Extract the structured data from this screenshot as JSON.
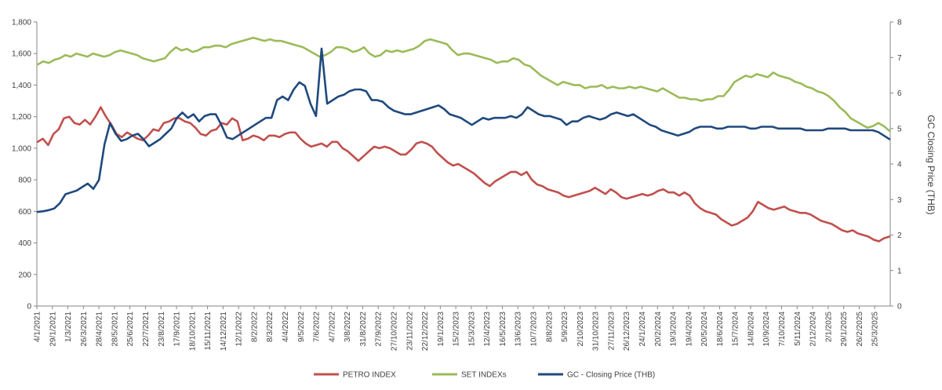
{
  "chart_data": {
    "type": "line",
    "title": "",
    "xlabel": "",
    "ylabel": "",
    "y2label": "GC Closing Price (THB)",
    "ylim": [
      0,
      1800
    ],
    "y_ticks": [
      "0",
      "200",
      "400",
      "600",
      "800",
      "1,000",
      "1,200",
      "1,400",
      "1,600",
      "1,800"
    ],
    "y2lim": [
      0,
      8
    ],
    "y2_ticks": [
      "0",
      "1",
      "2",
      "3",
      "4",
      "5",
      "6",
      "7",
      "8"
    ],
    "x_ticks": [
      "4/1/2021",
      "29/1/2021",
      "1/3/2021",
      "26/3/2021",
      "28/4/2021",
      "28/5/2021",
      "25/6/2021",
      "22/7/2021",
      "23/8/2021",
      "17/9/2021",
      "18/10/2021",
      "15/11/2021",
      "14/12/2021",
      "12/1/2022",
      "8/2/2022",
      "8/3/2022",
      "4/4/2022",
      "9/5/2022",
      "7/6/2022",
      "4/7/2022",
      "3/8/2022",
      "31/8/2022",
      "27/9/2022",
      "27/10/2022",
      "23/11/2022",
      "22/12/2022",
      "19/1/2023",
      "15/2/2023",
      "15/3/2023",
      "12/4/2023",
      "16/5/2023",
      "13/6/2023",
      "10/7/2023",
      "8/8/2023",
      "5/9/2023",
      "2/10/2023",
      "31/10/2023",
      "27/11/2023",
      "26/12/2023",
      "24/1/2024",
      "20/2/2024",
      "19/3/2024",
      "19/4/2024",
      "20/5/2024",
      "18/6/2024",
      "15/7/2024",
      "14/8/2024",
      "10/9/2024",
      "7/10/2024",
      "5/11/2024",
      "2/12/2024",
      "2/1/2025",
      "29/1/2025",
      "26/2/2025",
      "25/3/2025"
    ],
    "grid": false,
    "legend_position": "bottom",
    "series": [
      {
        "name": "PETRO INDEX",
        "axis": "left",
        "color": "#c0504d",
        "values": [
          1040,
          1060,
          1020,
          1090,
          1120,
          1190,
          1200,
          1160,
          1150,
          1180,
          1150,
          1200,
          1260,
          1200,
          1150,
          1090,
          1070,
          1100,
          1080,
          1060,
          1050,
          1080,
          1120,
          1110,
          1160,
          1170,
          1190,
          1190,
          1170,
          1160,
          1130,
          1090,
          1080,
          1110,
          1120,
          1160,
          1150,
          1190,
          1170,
          1050,
          1060,
          1080,
          1070,
          1050,
          1080,
          1080,
          1070,
          1090,
          1100,
          1100,
          1060,
          1030,
          1010,
          1020,
          1030,
          1010,
          1040,
          1040,
          1000,
          980,
          950,
          920,
          950,
          980,
          1010,
          1000,
          1010,
          1000,
          980,
          960,
          960,
          990,
          1030,
          1040,
          1030,
          1010,
          970,
          940,
          910,
          890,
          900,
          880,
          860,
          840,
          810,
          780,
          760,
          790,
          810,
          830,
          850,
          850,
          830,
          850,
          800,
          770,
          760,
          740,
          730,
          720,
          700,
          690,
          700,
          710,
          720,
          730,
          750,
          730,
          710,
          740,
          720,
          690,
          680,
          690,
          700,
          710,
          700,
          710,
          730,
          740,
          720,
          720,
          700,
          720,
          700,
          650,
          620,
          600,
          590,
          580,
          550,
          530,
          510,
          520,
          540,
          560,
          600,
          660,
          640,
          620,
          610,
          620,
          630,
          610,
          600,
          590,
          590,
          580,
          560,
          540,
          530,
          520,
          500,
          480,
          470,
          480,
          460,
          450,
          440,
          420,
          410,
          430,
          440
        ]
      },
      {
        "name": "SET INDEXs",
        "axis": "left",
        "color": "#9bbb59",
        "values": [
          1530,
          1550,
          1540,
          1560,
          1570,
          1590,
          1580,
          1600,
          1590,
          1580,
          1600,
          1590,
          1580,
          1590,
          1610,
          1620,
          1610,
          1600,
          1590,
          1570,
          1560,
          1550,
          1560,
          1570,
          1610,
          1640,
          1620,
          1630,
          1610,
          1620,
          1640,
          1640,
          1650,
          1650,
          1640,
          1660,
          1670,
          1680,
          1690,
          1700,
          1690,
          1680,
          1690,
          1680,
          1680,
          1670,
          1660,
          1650,
          1640,
          1620,
          1600,
          1580,
          1590,
          1610,
          1640,
          1640,
          1630,
          1610,
          1620,
          1640,
          1600,
          1580,
          1590,
          1620,
          1610,
          1620,
          1610,
          1620,
          1630,
          1650,
          1680,
          1690,
          1680,
          1670,
          1660,
          1620,
          1590,
          1600,
          1600,
          1590,
          1580,
          1570,
          1560,
          1540,
          1550,
          1550,
          1570,
          1560,
          1530,
          1520,
          1490,
          1460,
          1440,
          1420,
          1400,
          1420,
          1410,
          1400,
          1400,
          1380,
          1390,
          1390,
          1400,
          1380,
          1390,
          1380,
          1380,
          1390,
          1380,
          1390,
          1380,
          1370,
          1360,
          1380,
          1360,
          1340,
          1320,
          1320,
          1310,
          1310,
          1300,
          1310,
          1310,
          1330,
          1330,
          1370,
          1420,
          1440,
          1460,
          1450,
          1470,
          1460,
          1450,
          1480,
          1460,
          1450,
          1440,
          1420,
          1410,
          1390,
          1380,
          1360,
          1350,
          1330,
          1300,
          1260,
          1230,
          1190,
          1170,
          1150,
          1130,
          1140,
          1160,
          1140,
          1110
        ]
      },
      {
        "name": "GC - Closing Price (THB)",
        "axis": "right",
        "color": "#1f497d",
        "values": [
          2.65,
          2.67,
          2.7,
          2.75,
          2.9,
          3.15,
          3.2,
          3.25,
          3.35,
          3.45,
          3.3,
          3.55,
          4.55,
          5.15,
          4.85,
          4.65,
          4.7,
          4.8,
          4.85,
          4.7,
          4.5,
          4.6,
          4.7,
          4.85,
          5.0,
          5.3,
          5.45,
          5.3,
          5.4,
          5.2,
          5.35,
          5.4,
          5.4,
          5.1,
          4.75,
          4.7,
          4.8,
          4.9,
          5.0,
          5.1,
          5.2,
          5.3,
          5.3,
          5.8,
          5.9,
          5.8,
          6.1,
          6.3,
          6.2,
          5.7,
          5.35,
          7.25,
          5.7,
          5.8,
          5.9,
          5.95,
          6.05,
          6.1,
          6.1,
          6.05,
          5.8,
          5.8,
          5.75,
          5.6,
          5.5,
          5.45,
          5.4,
          5.4,
          5.45,
          5.5,
          5.55,
          5.6,
          5.65,
          5.55,
          5.4,
          5.35,
          5.3,
          5.2,
          5.1,
          5.2,
          5.3,
          5.25,
          5.3,
          5.3,
          5.3,
          5.35,
          5.3,
          5.4,
          5.6,
          5.5,
          5.4,
          5.35,
          5.35,
          5.3,
          5.25,
          5.1,
          5.2,
          5.2,
          5.3,
          5.35,
          5.3,
          5.25,
          5.3,
          5.4,
          5.45,
          5.4,
          5.35,
          5.4,
          5.3,
          5.2,
          5.1,
          5.05,
          4.95,
          4.9,
          4.85,
          4.8,
          4.85,
          4.9,
          5.0,
          5.05,
          5.05,
          5.05,
          5.0,
          5.0,
          5.05,
          5.05,
          5.05,
          5.05,
          5.0,
          5.0,
          5.05,
          5.05,
          5.05,
          5.0,
          5.0,
          5.0,
          5.0,
          5.0,
          4.95,
          4.95,
          4.95,
          4.95,
          5.0,
          5.0,
          5.0,
          5.0,
          4.95,
          4.95,
          4.95,
          4.95,
          4.95,
          4.9,
          4.8,
          4.7
        ]
      }
    ]
  }
}
